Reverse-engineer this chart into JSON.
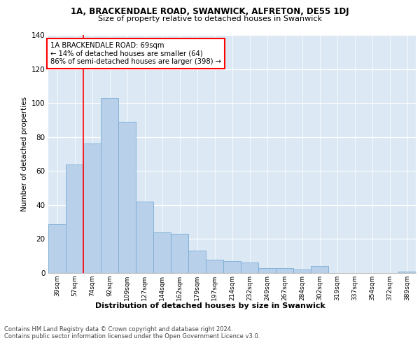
{
  "title1": "1A, BRACKENDALE ROAD, SWANWICK, ALFRETON, DE55 1DJ",
  "title2": "Size of property relative to detached houses in Swanwick",
  "xlabel": "Distribution of detached houses by size in Swanwick",
  "ylabel": "Number of detached properties",
  "categories": [
    "39sqm",
    "57sqm",
    "74sqm",
    "92sqm",
    "109sqm",
    "127sqm",
    "144sqm",
    "162sqm",
    "179sqm",
    "197sqm",
    "214sqm",
    "232sqm",
    "249sqm",
    "267sqm",
    "284sqm",
    "302sqm",
    "319sqm",
    "337sqm",
    "354sqm",
    "372sqm",
    "389sqm"
  ],
  "values": [
    29,
    64,
    76,
    103,
    89,
    42,
    24,
    23,
    13,
    8,
    7,
    6,
    3,
    3,
    2,
    4,
    0,
    0,
    0,
    0,
    1
  ],
  "bar_color": "#b8d0ea",
  "bar_edge_color": "#7aadd4",
  "annotation_text_line1": "1A BRACKENDALE ROAD: 69sqm",
  "annotation_text_line2": "← 14% of detached houses are smaller (64)",
  "annotation_text_line3": "86% of semi-detached houses are larger (398) →",
  "vline_x_index": 1.5,
  "ylim": [
    0,
    140
  ],
  "yticks": [
    0,
    20,
    40,
    60,
    80,
    100,
    120,
    140
  ],
  "background_color": "#dce9f5",
  "footer1": "Contains HM Land Registry data © Crown copyright and database right 2024.",
  "footer2": "Contains public sector information licensed under the Open Government Licence v3.0."
}
